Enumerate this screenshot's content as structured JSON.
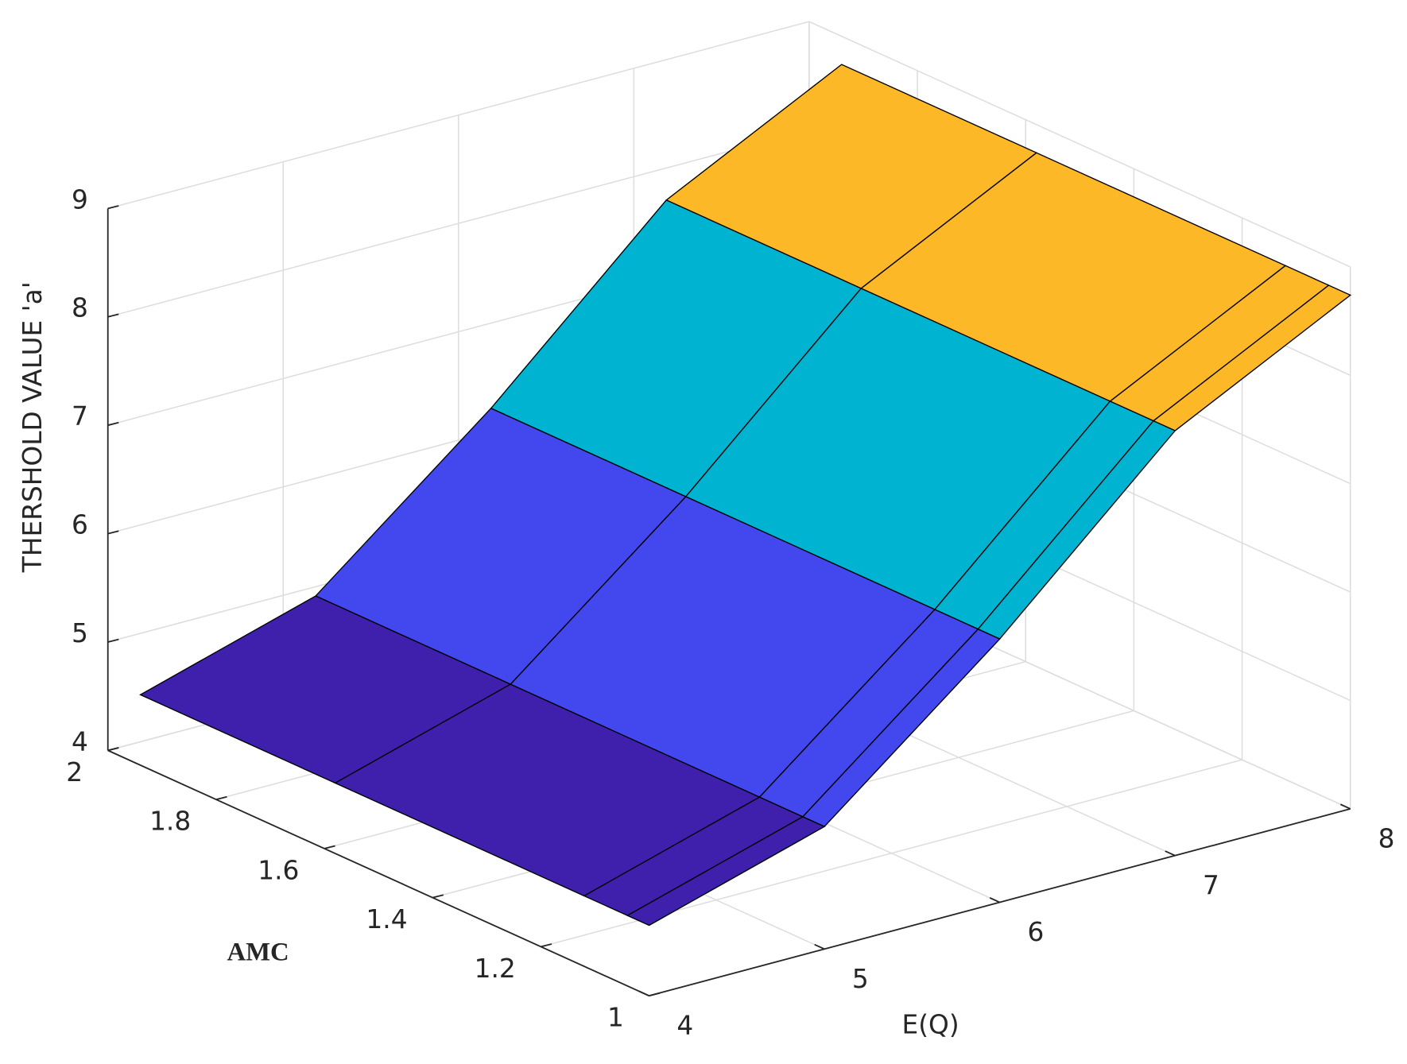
{
  "chart_data": {
    "type": "surface",
    "xlabel": "E(Q)",
    "ylabel": "AMC",
    "zlabel": "THERSHOLD VALUE 'a'",
    "x": [
      4,
      5,
      6,
      7,
      8
    ],
    "y": [
      1,
      1.04,
      1.12,
      1.58,
      1.94
    ],
    "z": [
      [
        4.65,
        5.13,
        6.43,
        7.92,
        8.74
      ],
      [
        4.65,
        5.13,
        6.43,
        7.92,
        8.74
      ],
      [
        4.65,
        5.13,
        6.43,
        7.92,
        8.74
      ],
      [
        4.65,
        5.13,
        6.43,
        7.92,
        8.74
      ],
      [
        4.65,
        5.13,
        6.43,
        7.92,
        8.74
      ]
    ],
    "xlim": [
      4,
      8
    ],
    "ylim": [
      1,
      2
    ],
    "zlim": [
      4,
      9
    ],
    "xticks": [
      4,
      5,
      6,
      7,
      8
    ],
    "yticks": [
      1,
      1.2,
      1.4,
      1.6,
      1.8,
      2
    ],
    "zticks": [
      4,
      5,
      6,
      7,
      8,
      9
    ],
    "colormap": [
      "#3f20ad",
      "#4347ee",
      "#00b3d1",
      "#fdb827"
    ],
    "grid": true
  }
}
